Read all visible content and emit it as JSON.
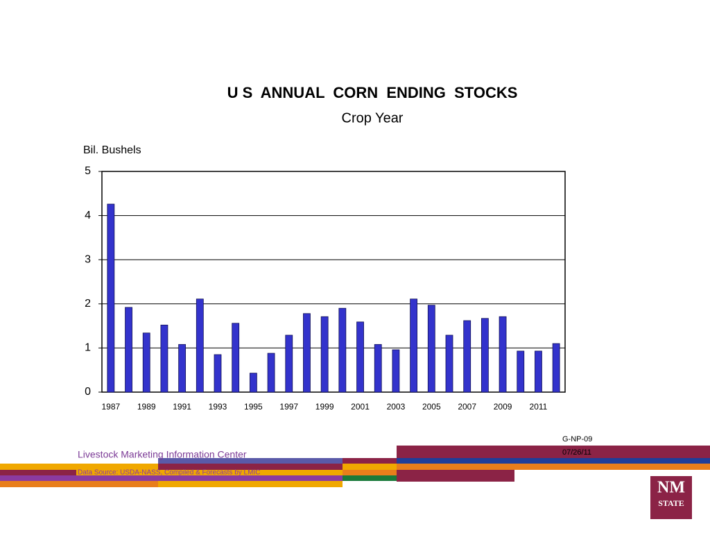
{
  "chart_data": {
    "type": "bar",
    "title": "U S  ANNUAL  CORN  ENDING  STOCKS",
    "subtitle": "Crop Year",
    "y_label": "Bil. Bushels",
    "categories": [
      "1987",
      null,
      "1989",
      null,
      "1991",
      null,
      "1993",
      null,
      "1995",
      null,
      "1997",
      null,
      "1999",
      null,
      "2001",
      null,
      "2003",
      null,
      "2005",
      null,
      "2007",
      null,
      "2009",
      null,
      "2011",
      null
    ],
    "values": [
      4.26,
      1.92,
      1.34,
      1.52,
      1.08,
      2.11,
      0.85,
      1.56,
      0.43,
      0.88,
      1.29,
      1.78,
      1.71,
      1.9,
      1.59,
      1.08,
      0.96,
      2.11,
      1.97,
      1.29,
      1.62,
      1.67,
      1.71,
      0.93,
      0.93,
      1.1
    ],
    "color": "#3333cc",
    "ylim": [
      0,
      5
    ],
    "yticks": [
      0,
      1,
      2,
      3,
      4,
      5
    ],
    "grid": true
  },
  "footer": {
    "code": "G-NP-09",
    "date": "07/26/11",
    "organization": "Livestock Marketing Information Center",
    "source": "Data Source: USDA-NASS, Compiled & Forecasts by LMIC",
    "logo": [
      "NM",
      "STATE"
    ]
  }
}
